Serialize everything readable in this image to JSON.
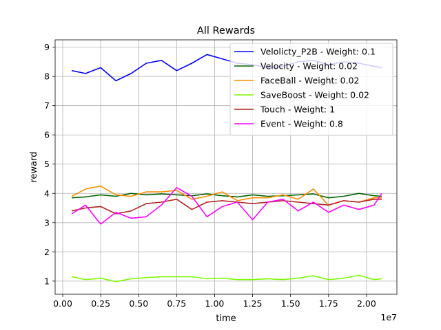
{
  "chart_data": {
    "type": "line",
    "title": "All Rewards",
    "xlabel": "time",
    "ylabel": "reward",
    "x_offset_label": "1e7",
    "xlim": [
      -0.05,
      2.2
    ],
    "ylim": [
      0.55,
      9.25
    ],
    "x_ticks": [
      0.0,
      0.25,
      0.5,
      0.75,
      1.0,
      1.25,
      1.5,
      1.75,
      2.0
    ],
    "x_tick_labels": [
      "0.00",
      "0.25",
      "0.50",
      "0.75",
      "1.00",
      "1.25",
      "1.50",
      "1.75",
      "2.00"
    ],
    "y_ticks": [
      1,
      2,
      3,
      4,
      5,
      6,
      7,
      8,
      9
    ],
    "y_tick_labels": [
      "1",
      "2",
      "3",
      "4",
      "5",
      "6",
      "7",
      "8",
      "9"
    ],
    "grid": true,
    "legend_position": "top-right",
    "x": [
      0.06,
      0.15,
      0.25,
      0.35,
      0.45,
      0.55,
      0.65,
      0.75,
      0.85,
      0.95,
      1.05,
      1.15,
      1.25,
      1.35,
      1.45,
      1.55,
      1.65,
      1.75,
      1.85,
      1.95,
      2.05,
      2.1
    ],
    "series": [
      {
        "name": "Velolicty_P2B - Weight: 0.1",
        "color": "#0000ff",
        "values": [
          8.2,
          8.1,
          8.3,
          7.85,
          8.1,
          8.45,
          8.55,
          8.2,
          8.45,
          8.75,
          8.6,
          8.45,
          8.4,
          8.3,
          8.35,
          8.5,
          8.55,
          8.4,
          8.5,
          8.45,
          8.35,
          8.3
        ]
      },
      {
        "name": "Velocity - Weight: 0.02",
        "color": "#006400",
        "values": [
          3.85,
          3.88,
          3.95,
          3.9,
          4.0,
          3.95,
          3.98,
          3.95,
          3.92,
          3.98,
          3.92,
          3.88,
          3.95,
          3.9,
          3.92,
          3.95,
          3.98,
          3.85,
          3.9,
          4.0,
          3.92,
          3.9
        ]
      },
      {
        "name": "FaceBall - Weight: 0.02",
        "color": "#ff8c00",
        "values": [
          3.9,
          4.15,
          4.25,
          3.95,
          3.9,
          4.05,
          4.05,
          4.1,
          3.8,
          3.9,
          4.05,
          3.75,
          3.85,
          3.85,
          3.95,
          3.8,
          4.15,
          3.6,
          3.75,
          3.7,
          3.85,
          3.85
        ]
      },
      {
        "name": "SaveBoost - Weight: 0.02",
        "color": "#7cfc00",
        "values": [
          1.15,
          1.05,
          1.1,
          0.98,
          1.08,
          1.12,
          1.15,
          1.15,
          1.15,
          1.08,
          1.1,
          1.05,
          1.05,
          1.08,
          1.05,
          1.1,
          1.18,
          1.05,
          1.1,
          1.2,
          1.05,
          1.08
        ]
      },
      {
        "name": "Touch - Weight: 1",
        "color": "#b22222",
        "values": [
          3.4,
          3.5,
          3.55,
          3.3,
          3.4,
          3.65,
          3.7,
          3.8,
          3.45,
          3.7,
          3.75,
          3.7,
          3.65,
          3.7,
          3.75,
          3.7,
          3.65,
          3.6,
          3.75,
          3.7,
          3.8,
          3.8
        ]
      },
      {
        "name": "Event - Weight: 0.8",
        "color": "#ff00ff",
        "values": [
          3.3,
          3.6,
          2.95,
          3.35,
          3.15,
          3.2,
          3.6,
          4.2,
          3.9,
          3.2,
          3.55,
          3.7,
          3.1,
          3.7,
          3.8,
          3.4,
          3.7,
          3.35,
          3.6,
          3.45,
          3.6,
          4.0
        ]
      }
    ]
  }
}
